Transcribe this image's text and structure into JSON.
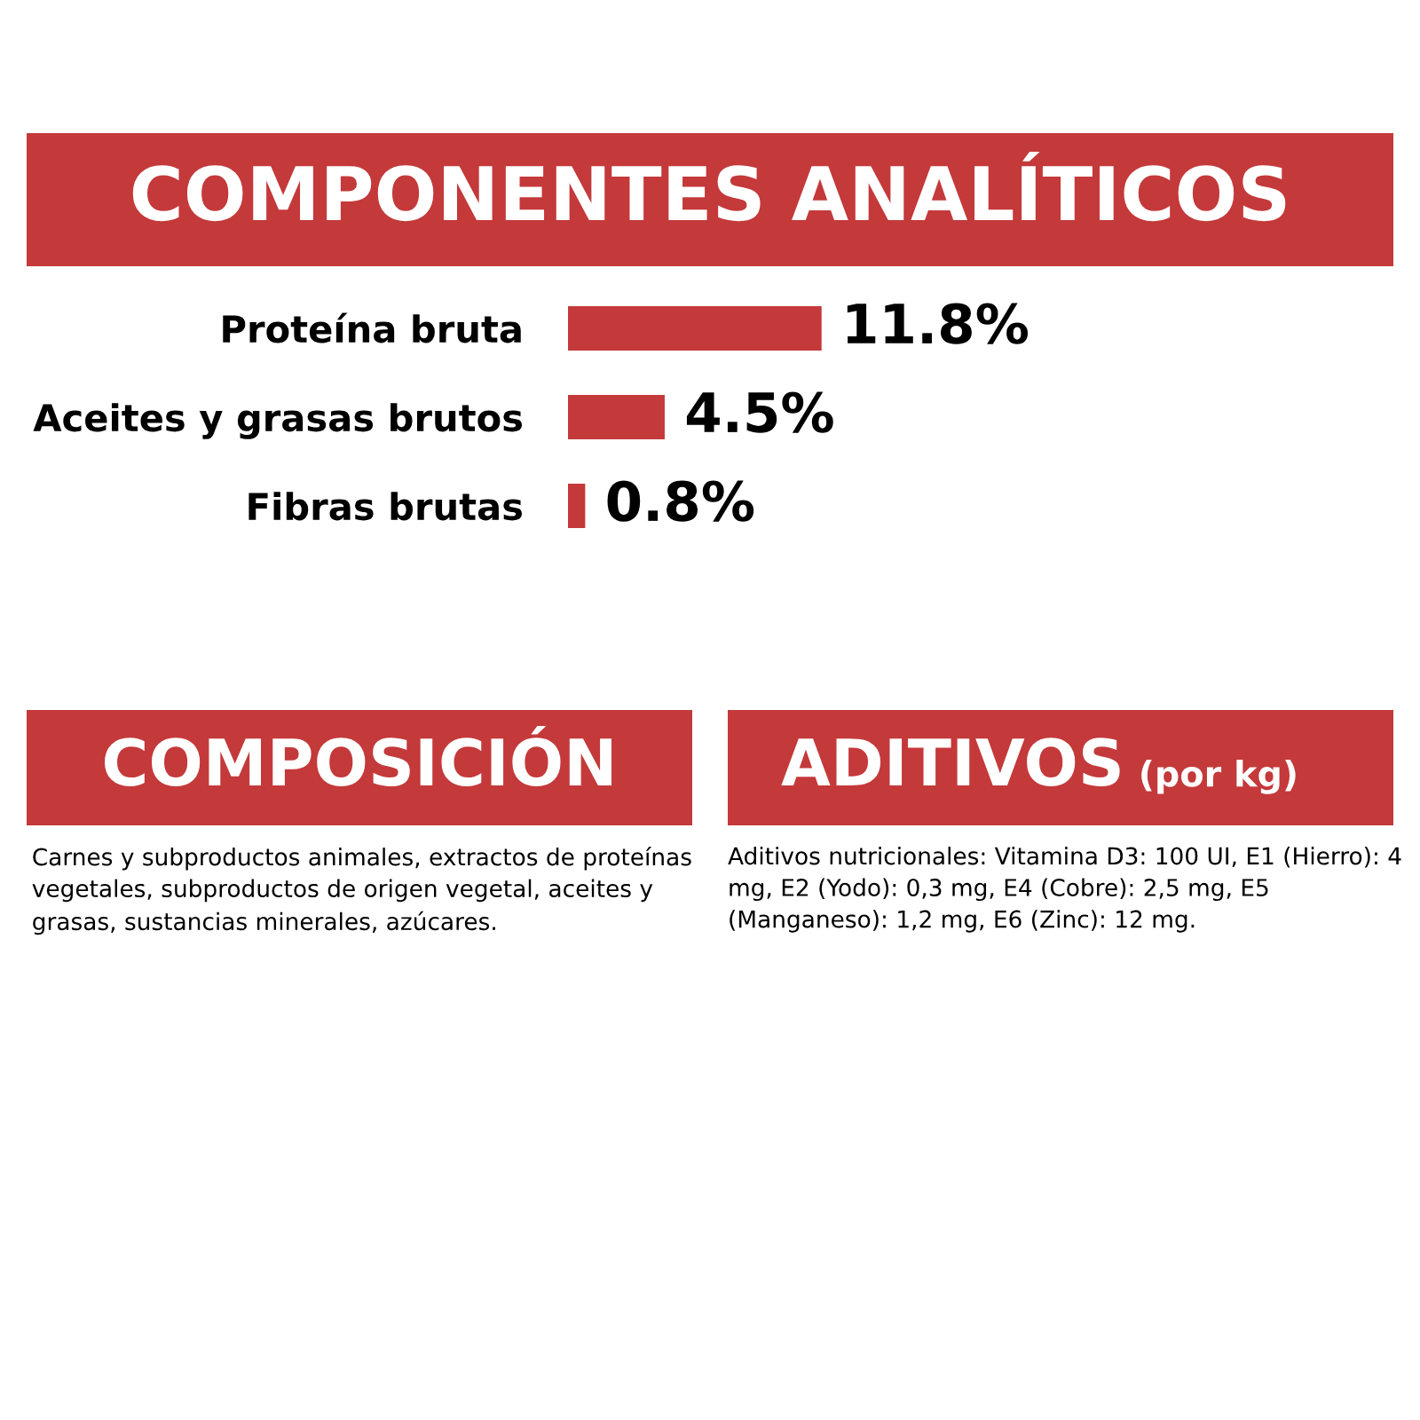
{
  "chart_data": [
    {
      "type": "bar",
      "orientation": "horizontal",
      "title": "COMPONENTES ANALÍTICOS",
      "categories": [
        "Proteína bruta",
        "Aceites y grasas brutos",
        "Fibras brutas"
      ],
      "values": [
        11.8,
        4.5,
        0.8
      ],
      "value_labels": [
        "11.8%",
        "4.5%",
        "0.8%"
      ],
      "color": "#c4393a"
    },
    {
      "type": "other",
      "title": "COMPOSICIÓN",
      "annotations": [
        "Carnes y subproductos animales, extractos de proteínas vegetales, subproductos de origen vegetal, aceites y grasas, sustancias minerales, azúcares."
      ]
    },
    {
      "type": "other",
      "title": "ADITIVOS",
      "subtitle": "(por kg)",
      "annotations": [
        "Aditivos nutricionales: Vitamina D3: 100 UI, E1 (Hierro): 4 mg, E2 (Yodo): 0,3 mg, E4 (Cobre): 2,5 mg, E5 (Manganeso): 1,2 mg, E6 (Zinc): 12 mg."
      ]
    }
  ]
}
